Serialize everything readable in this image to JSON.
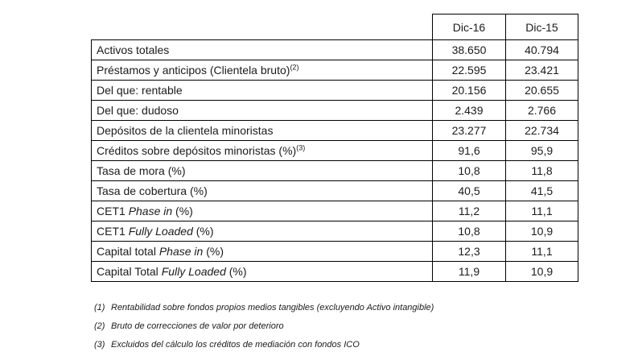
{
  "table": {
    "columns": [
      "Dic-16",
      "Dic-15"
    ],
    "rows": [
      {
        "pre": "Activos totales",
        "italic": "",
        "post": "",
        "sup": "",
        "v1": "38.650",
        "v2": "40.794"
      },
      {
        "pre": "Préstamos y anticipos (Clientela bruto)",
        "italic": "",
        "post": "",
        "sup": "(2)",
        "v1": "22.595",
        "v2": "23.421"
      },
      {
        "pre": "Del que: rentable",
        "italic": "",
        "post": "",
        "sup": "",
        "v1": "20.156",
        "v2": "20.655"
      },
      {
        "pre": "Del que: dudoso",
        "italic": "",
        "post": "",
        "sup": "",
        "v1": "2.439",
        "v2": "2.766"
      },
      {
        "pre": "Depósitos de la clientela minoristas",
        "italic": "",
        "post": "",
        "sup": "",
        "v1": "23.277",
        "v2": "22.734"
      },
      {
        "pre": "Créditos sobre depósitos minoristas (%)",
        "italic": "",
        "post": "",
        "sup": "(3)",
        "v1": "91,6",
        "v2": "95,9"
      },
      {
        "pre": "Tasa de mora (%)",
        "italic": "",
        "post": "",
        "sup": "",
        "v1": "10,8",
        "v2": "11,8"
      },
      {
        "pre": "Tasa de cobertura (%)",
        "italic": "",
        "post": "",
        "sup": "",
        "v1": "40,5",
        "v2": "41,5"
      },
      {
        "pre": "CET1 ",
        "italic": "Phase in",
        "post": " (%)",
        "sup": "",
        "v1": "11,2",
        "v2": "11,1"
      },
      {
        "pre": "CET1 ",
        "italic": "Fully Loaded",
        "post": " (%)",
        "sup": "",
        "v1": "10,8",
        "v2": "10,9"
      },
      {
        "pre": "Capital total ",
        "italic": "Phase in",
        "post": " (%)",
        "sup": "",
        "v1": "12,3",
        "v2": "11,1"
      },
      {
        "pre": "Capital Total ",
        "italic": "Fully Loaded",
        "post": " (%)",
        "sup": "",
        "v1": "11,9",
        "v2": "10,9"
      }
    ]
  },
  "footnotes": [
    {
      "num": "(1)",
      "text": "Rentabilidad sobre fondos propios medios tangibles (excluyendo Activo intangible)"
    },
    {
      "num": "(2)",
      "text": "Bruto de correcciones de valor por deterioro"
    },
    {
      "num": "(3)",
      "text": "Excluidos del cálculo los créditos de mediación con fondos ICO"
    }
  ]
}
